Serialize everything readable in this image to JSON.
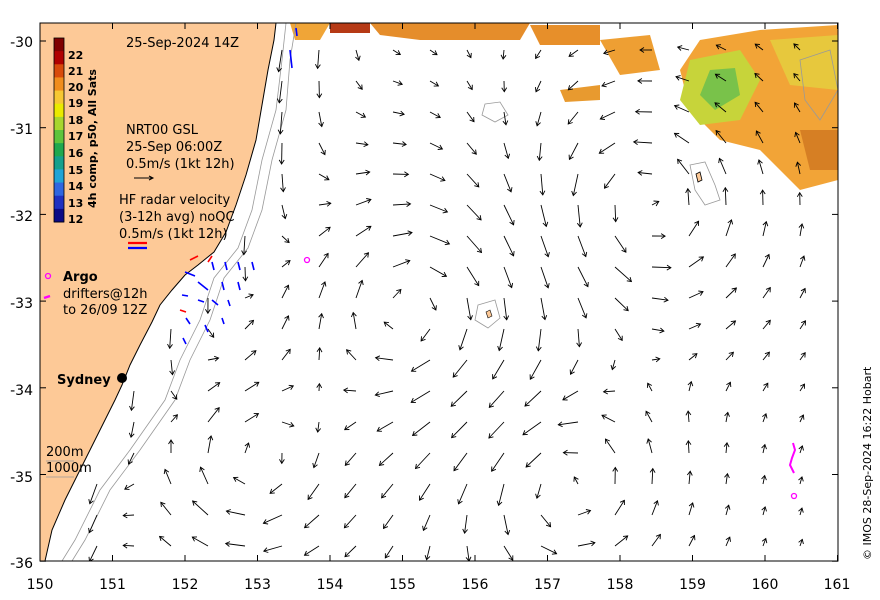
{
  "map": {
    "date_label": "25-Sep-2024 14Z",
    "credit": "© IMOS 28-Sep-2024 16:22 Hobart",
    "lon_ticks": [
      "150",
      "151",
      "152",
      "153",
      "154",
      "155",
      "156",
      "157",
      "158",
      "159",
      "160",
      "161"
    ],
    "lat_ticks": [
      "-30",
      "-31",
      "-32",
      "-33",
      "-34",
      "-35",
      "-36"
    ],
    "extent": {
      "lon": [
        150,
        161
      ],
      "lat": [
        -36,
        -29.8
      ]
    },
    "colors": {
      "land": "#fdc997",
      "coast": "#000000",
      "isobath": "#999999",
      "argo": "#ff00ff",
      "hf_red": "#ff0000",
      "hf_blue": "#0000ff"
    }
  },
  "colorbar": {
    "label": "4h comp, p50, All Sats",
    "ticks": [
      "22",
      "21",
      "20",
      "19",
      "18",
      "17",
      "16",
      "15",
      "14",
      "13",
      "12"
    ],
    "colors": [
      "#7f0000",
      "#b00000",
      "#d84a0b",
      "#f08c1c",
      "#f6c832",
      "#eaea00",
      "#a7d62e",
      "#5dc43c",
      "#1fa84e",
      "#14a08c",
      "#1fa3d6",
      "#2f66e0",
      "#1f30c0",
      "#0b0a85"
    ]
  },
  "legend": {
    "gsl_title": "NRT00 GSL",
    "gsl_date": "25-Sep 06:00Z",
    "gsl_scale": "0.5m/s (1kt 12h)",
    "hf_line1": "HF radar velocity",
    "hf_line2": "(3-12h avg) noQC",
    "hf_scale": "0.5m/s (1kt 12h)",
    "argo": "Argo",
    "drifters_line1": "drifters@12h",
    "drifters_line2": "to 26/09 12Z",
    "sydney": "Sydney",
    "isobath_200": "200m",
    "isobath_1000": "1000m"
  }
}
